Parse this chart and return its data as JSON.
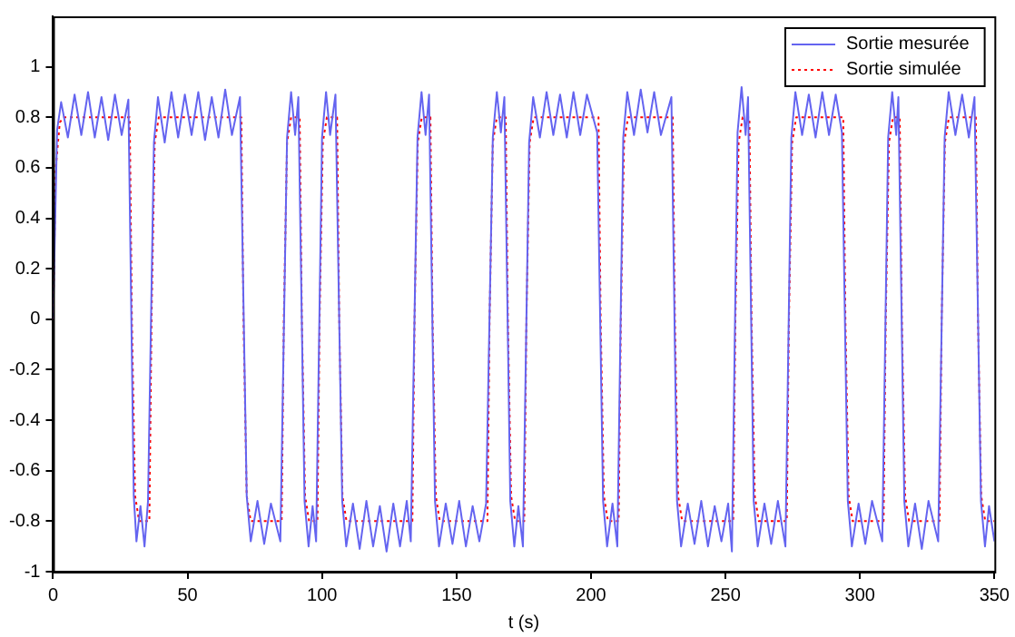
{
  "chart_data": {
    "type": "line",
    "xlabel": "t (s)",
    "xlim": [
      0,
      350
    ],
    "xticks": [
      0,
      50,
      100,
      150,
      200,
      250,
      300,
      350
    ],
    "ylim": [
      -1,
      1.2
    ],
    "yticks": [
      -1,
      -0.8,
      -0.6,
      -0.4,
      -0.2,
      0,
      0.2,
      0.4,
      0.6,
      0.8,
      1
    ],
    "grid": false,
    "legend": "top right",
    "marker": "none",
    "series": [
      {
        "name": "Sortie mesurée",
        "color": "#6464f0",
        "line_style": "solid",
        "x": [
          0,
          1.5,
          3,
          5.5,
          8,
          10.5,
          13,
          15.5,
          18,
          20.5,
          23,
          25.5,
          28,
          30,
          31,
          32.5,
          34,
          35.3,
          37.5,
          39,
          41.5,
          44,
          46.5,
          49,
          51.5,
          54,
          56.5,
          59,
          61.5,
          64,
          66.5,
          69.5,
          72,
          73.5,
          76,
          78.5,
          81,
          84.5,
          87,
          88.5,
          90,
          91.2,
          93.5,
          95,
          96.5,
          97.8,
          100,
          101.5,
          103,
          105,
          107.5,
          109,
          111.5,
          114,
          116.5,
          119,
          121.5,
          124,
          126.5,
          129,
          131.5,
          133,
          135.5,
          137,
          138.5,
          139.8,
          142,
          143.5,
          146,
          148.5,
          151,
          153.5,
          156,
          158.5,
          161,
          163.5,
          165,
          166.5,
          167.8,
          170,
          171.5,
          173,
          174.7,
          177,
          178.5,
          181,
          183.5,
          186,
          188.5,
          191,
          193.5,
          196,
          198.5,
          202.3,
          204.5,
          206,
          208,
          209.8,
          212,
          213.5,
          216,
          218.5,
          221,
          223.5,
          226,
          229.9,
          232,
          233.5,
          236,
          238.5,
          241,
          243.5,
          246,
          248.5,
          251,
          252.4,
          254.5,
          256,
          257.5,
          258.4,
          260.5,
          262,
          264.5,
          267,
          269.5,
          272.3,
          274.5,
          276,
          278.5,
          281,
          283.5,
          286,
          288.5,
          291,
          293.3,
          295.5,
          297,
          299.5,
          302,
          304.5,
          308.3,
          310.5,
          312,
          313.5,
          314.3,
          316.5,
          318,
          320.5,
          323,
          325.5,
          329.1,
          331.5,
          333,
          335.5,
          338,
          340.5,
          342.6,
          345,
          346.5,
          348,
          350
        ],
        "values": [
          0,
          0.75,
          0.86,
          0.72,
          0.89,
          0.73,
          0.9,
          0.72,
          0.88,
          0.71,
          0.89,
          0.73,
          0.87,
          -0.7,
          -0.88,
          -0.74,
          -0.9,
          -0.72,
          0.7,
          0.88,
          0.7,
          0.9,
          0.72,
          0.89,
          0.73,
          0.9,
          0.71,
          0.88,
          0.72,
          0.91,
          0.73,
          0.88,
          -0.7,
          -0.88,
          -0.72,
          -0.89,
          -0.73,
          -0.88,
          0.72,
          0.9,
          0.73,
          0.88,
          -0.72,
          -0.9,
          -0.74,
          -0.88,
          0.72,
          0.9,
          0.73,
          0.89,
          -0.72,
          -0.9,
          -0.73,
          -0.91,
          -0.72,
          -0.9,
          -0.74,
          -0.92,
          -0.73,
          -0.9,
          -0.72,
          -0.88,
          0.72,
          0.9,
          0.73,
          0.89,
          -0.72,
          -0.9,
          -0.73,
          -0.89,
          -0.72,
          -0.9,
          -0.74,
          -0.88,
          -0.73,
          0.72,
          0.9,
          0.74,
          0.88,
          -0.72,
          -0.9,
          -0.74,
          -0.9,
          0.7,
          0.88,
          0.72,
          0.9,
          0.73,
          0.89,
          0.72,
          0.9,
          0.73,
          0.89,
          0.74,
          -0.72,
          -0.9,
          -0.73,
          -0.9,
          0.72,
          0.9,
          0.73,
          0.91,
          0.74,
          0.9,
          0.73,
          0.88,
          -0.72,
          -0.9,
          -0.73,
          -0.89,
          -0.72,
          -0.9,
          -0.74,
          -0.88,
          -0.73,
          -0.92,
          0.74,
          0.92,
          0.73,
          0.88,
          -0.72,
          -0.9,
          -0.73,
          -0.89,
          -0.72,
          -0.9,
          0.72,
          0.9,
          0.73,
          0.89,
          0.72,
          0.9,
          0.73,
          0.89,
          0.74,
          -0.72,
          -0.9,
          -0.73,
          -0.89,
          -0.72,
          -0.88,
          0.72,
          0.9,
          0.73,
          0.88,
          -0.72,
          -0.9,
          -0.73,
          -0.91,
          -0.72,
          -0.88,
          0.72,
          0.9,
          0.73,
          0.89,
          0.72,
          0.88,
          -0.72,
          -0.9,
          -0.74,
          -0.88
        ]
      },
      {
        "name": "Sortie simulée",
        "color": "#ff0000",
        "line_style": "dotted",
        "x": [
          0,
          1,
          2.5,
          4,
          28.5,
          29.3,
          30.5,
          32,
          35.8,
          36.6,
          37.8,
          39.3,
          70,
          70.8,
          72,
          73.5,
          85,
          85.8,
          87,
          88.5,
          91.7,
          92.5,
          93.7,
          95.2,
          98.3,
          99.1,
          100.3,
          101.8,
          105.6,
          106.4,
          107.6,
          109.1,
          133.6,
          134.4,
          135.6,
          137.1,
          140.3,
          141.1,
          142.3,
          143.8,
          161.5,
          162.3,
          163.5,
          165,
          168.3,
          169.1,
          170.3,
          171.8,
          175.2,
          176,
          177.2,
          178.7,
          202.8,
          203.6,
          204.8,
          206.3,
          210.3,
          211.1,
          212.3,
          213.8,
          230.4,
          231.2,
          232.4,
          233.9,
          252.9,
          253.7,
          254.9,
          256.4,
          258.9,
          259.7,
          260.9,
          262.4,
          272.8,
          273.6,
          274.8,
          276.3,
          293.8,
          294.6,
          295.8,
          297.3,
          308.8,
          309.6,
          310.8,
          312.3,
          314.8,
          315.6,
          316.8,
          318.3,
          329.6,
          330.4,
          331.6,
          333.1,
          343.1,
          343.9,
          345.1,
          346.6,
          350
        ],
        "values": [
          0,
          0.6,
          0.78,
          0.8,
          0.8,
          0,
          -0.7,
          -0.8,
          -0.8,
          0,
          0.7,
          0.8,
          0.8,
          0,
          -0.7,
          -0.8,
          -0.8,
          0,
          0.7,
          0.8,
          0.8,
          0,
          -0.7,
          -0.8,
          -0.8,
          0,
          0.7,
          0.8,
          0.8,
          0,
          -0.7,
          -0.8,
          -0.8,
          0,
          0.7,
          0.8,
          0.8,
          0,
          -0.7,
          -0.8,
          -0.8,
          0,
          0.7,
          0.8,
          0.8,
          0,
          -0.7,
          -0.8,
          -0.8,
          0,
          0.7,
          0.8,
          0.8,
          0,
          -0.7,
          -0.8,
          -0.8,
          0,
          0.7,
          0.8,
          0.8,
          0,
          -0.7,
          -0.8,
          -0.8,
          0,
          0.7,
          0.8,
          0.8,
          0,
          -0.7,
          -0.8,
          -0.8,
          0,
          0.7,
          0.8,
          0.8,
          0,
          -0.7,
          -0.8,
          -0.8,
          0,
          0.7,
          0.8,
          0.8,
          0,
          -0.7,
          -0.8,
          -0.8,
          0,
          0.7,
          0.8,
          0.8,
          0,
          -0.7,
          -0.8,
          -0.8
        ]
      }
    ]
  }
}
